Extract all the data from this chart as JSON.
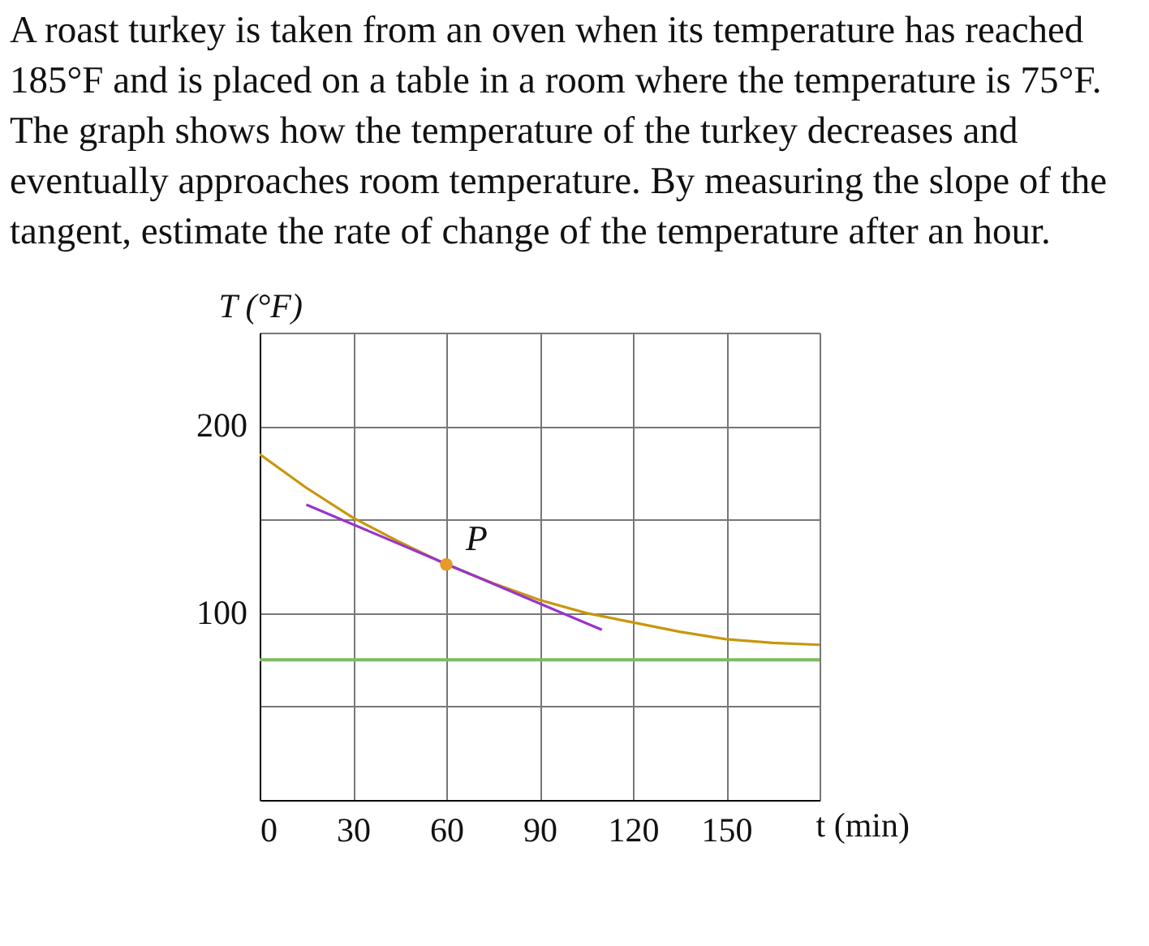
{
  "chart_data": {
    "type": "line",
    "title": "A roast turkey is taken from an oven when its temperature has reached 185°F and is placed on a table in a room where the temperature is 75°F. The graph shows how the temperature of the turkey decreases and eventually approaches room temperature. By measuring the slope of the tangent, estimate the rate of change of the temperature after an hour.",
    "xlabel": "t (min)",
    "ylabel": "T (°F)",
    "xlim": [
      0,
      180
    ],
    "ylim": [
      0,
      250
    ],
    "xticks": [
      0,
      30,
      60,
      90,
      120,
      150,
      {
        "value": 180,
        "label": null
      }
    ],
    "yticks": [
      {
        "value": 0,
        "label": null
      },
      {
        "value": 50,
        "label": null
      },
      100,
      {
        "value": 150,
        "label": null
      },
      200,
      {
        "value": 250,
        "label": null
      }
    ],
    "grid": true,
    "series": [
      {
        "color": "#c8960f",
        "x": [
          0,
          15,
          30,
          45,
          60,
          75,
          90,
          105,
          120,
          135,
          150,
          165,
          180
        ],
        "values": [
          185,
          167,
          151,
          138,
          126,
          116,
          107,
          100,
          95,
          90,
          86,
          84,
          83
        ]
      },
      {
        "type": "line",
        "color": "#9933cc",
        "x": [
          15,
          110
        ],
        "values": [
          158,
          91
        ]
      },
      {
        "type": "scatter",
        "color": "#e69a28",
        "x": [
          60
        ],
        "values": [
          126
        ]
      }
    ],
    "ref_lines": [
      {
        "axis": "y",
        "value": 75,
        "color": "#7dbb5f"
      }
    ],
    "annotations": [
      {
        "text": "P",
        "x": 60,
        "y": 126
      }
    ]
  }
}
